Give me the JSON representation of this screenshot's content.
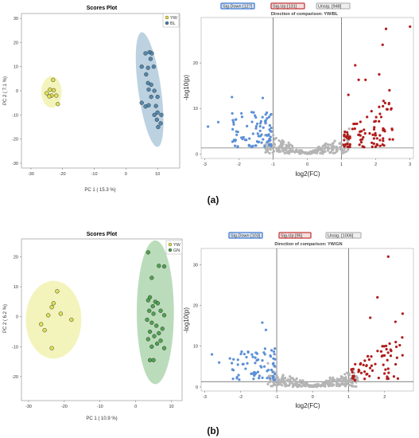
{
  "panels": [
    {
      "label": "(a)"
    },
    {
      "label": "(b)"
    }
  ],
  "chart_data": [
    {
      "type": "scatter",
      "title": "Scores Plot",
      "xlabel": "PC 1 ( 15.3 %)",
      "ylabel": "PC 2 ( 7.1 %)",
      "xlim": [
        -33,
        17
      ],
      "ylim": [
        -32,
        32
      ],
      "xticks": [
        -30,
        -20,
        -10,
        0,
        10
      ],
      "yticks": [
        -30,
        -20,
        -10,
        0,
        10,
        20,
        30
      ],
      "legend_position": "top-right",
      "colors": {
        "YW": "#dede40",
        "BL": "#3f7ea8"
      },
      "series": [
        {
          "name": "YW",
          "points": [
            [
              -23,
              4.5
            ],
            [
              -24,
              0.5
            ],
            [
              -25,
              -1
            ],
            [
              -23.5,
              -2
            ],
            [
              -22,
              -2
            ],
            [
              -21.5,
              -5.5
            ],
            [
              -24.2,
              -2.3
            ],
            [
              -22.8,
              0.2
            ]
          ]
        },
        {
          "name": "BL",
          "points": [
            [
              7.5,
              16
            ],
            [
              6.2,
              15.5
            ],
            [
              8.2,
              15.5
            ],
            [
              7.8,
              13.2
            ],
            [
              5,
              10
            ],
            [
              8.8,
              10
            ],
            [
              7,
              9.5
            ],
            [
              6.4,
              6.8
            ],
            [
              7,
              3.2
            ],
            [
              8,
              2.5
            ],
            [
              7.2,
              0.5
            ],
            [
              9,
              0
            ],
            [
              10,
              -2.5
            ],
            [
              8,
              -2.5
            ],
            [
              7.2,
              -6
            ],
            [
              5,
              -5
            ],
            [
              6.2,
              -6.5
            ],
            [
              10,
              -9
            ],
            [
              9,
              -10
            ],
            [
              11.2,
              -10
            ],
            [
              9.8,
              -12
            ],
            [
              11,
              -13.5
            ],
            [
              10.2,
              -15
            ],
            [
              9.5,
              -6.3
            ]
          ]
        }
      ],
      "ellipses": [
        {
          "group": "YW",
          "cx": -23.5,
          "cy": -0.5,
          "rx": 3.2,
          "ry": 6.5,
          "angle": 0
        },
        {
          "group": "BL",
          "cx": 7.5,
          "cy": 0.5,
          "rx": 3.6,
          "ry": 24,
          "angle": -8
        }
      ]
    },
    {
      "type": "scatter",
      "subtype": "volcano",
      "title": "Direction of comparison: YW/BL",
      "legend": [
        "Sig.Down [127]",
        "Sig.Up [131]",
        "Unsig. [948]"
      ],
      "xlabel": "log2(FC)",
      "ylabel": "-log10(p)",
      "xlim": [
        -3.1,
        3.1
      ],
      "ylim": [
        -1,
        30
      ],
      "xticks": [
        -3,
        -2,
        -1,
        0,
        1,
        2,
        3
      ],
      "yticks": [
        0,
        10,
        20
      ],
      "vlines": [
        -1,
        1
      ],
      "hline": 1.3,
      "colors": {
        "down": "#5b8fd6",
        "up": "#b01c1c",
        "unsig": "#b5b5b5"
      },
      "counts": {
        "down": 127,
        "up": 131,
        "unsig": 948
      },
      "outliers_up": [
        [
          2.3,
          27.5
        ],
        [
          3,
          28
        ],
        [
          2.2,
          24
        ],
        [
          1.4,
          19.5
        ],
        [
          2.1,
          17.5
        ],
        [
          1.7,
          16.3
        ],
        [
          1.5,
          16.3
        ],
        [
          2.4,
          14
        ],
        [
          1.2,
          13
        ]
      ],
      "outliers_down": [
        [
          -1.3,
          12.3
        ],
        [
          -2.2,
          12.5
        ],
        [
          -2.6,
          7
        ],
        [
          -2.9,
          6
        ]
      ]
    },
    {
      "type": "scatter",
      "title": "Scores Plot",
      "xlabel": "PC 1 ( 10.9 %)",
      "ylabel": "PC 2 ( 6.2 %)",
      "xlim": [
        -32,
        13
      ],
      "ylim": [
        -28,
        26
      ],
      "xticks": [
        -30,
        -20,
        -10,
        0,
        10
      ],
      "yticks": [
        -20,
        -10,
        0,
        10,
        20
      ],
      "legend_position": "top-right",
      "colors": {
        "YW": "#dede40",
        "GN": "#3c9a3c"
      },
      "series": [
        {
          "name": "YW",
          "points": [
            [
              -22,
              8.5
            ],
            [
              -23,
              4.5
            ],
            [
              -23.5,
              3.2
            ],
            [
              -21,
              1
            ],
            [
              -24.5,
              0.5
            ],
            [
              -18,
              -1
            ],
            [
              -26.5,
              -2.5
            ],
            [
              -25.5,
              -4.5
            ],
            [
              -23.5,
              -10.5
            ]
          ]
        },
        {
          "name": "GN",
          "points": [
            [
              3.5,
              21.5
            ],
            [
              6.5,
              17
            ],
            [
              8,
              16.8
            ],
            [
              4.5,
              13
            ],
            [
              4,
              6.5
            ],
            [
              3.5,
              5.5
            ],
            [
              5.5,
              5
            ],
            [
              6.2,
              4.5
            ],
            [
              4.8,
              3.5
            ],
            [
              3.8,
              2
            ],
            [
              7,
              2
            ],
            [
              5,
              1
            ],
            [
              8,
              0.5
            ],
            [
              3.2,
              -1
            ],
            [
              4.5,
              -2
            ],
            [
              5.8,
              -3
            ],
            [
              7.5,
              -4
            ],
            [
              4,
              -5
            ],
            [
              6.5,
              -5.5
            ],
            [
              5.2,
              -6.5
            ],
            [
              3.5,
              -7.5
            ],
            [
              7,
              -8
            ],
            [
              6,
              -9
            ],
            [
              4.5,
              -10
            ],
            [
              8,
              -10.5
            ],
            [
              5,
              -14.5
            ],
            [
              4,
              -14.5
            ]
          ]
        }
      ],
      "ellipses": [
        {
          "group": "YW",
          "cx": -23,
          "cy": -1,
          "rx": 7.8,
          "ry": 13,
          "angle": 0
        },
        {
          "group": "GN",
          "cx": 5.5,
          "cy": 1.5,
          "rx": 5.2,
          "ry": 24,
          "angle": 0
        }
      ]
    },
    {
      "type": "scatter",
      "subtype": "volcano",
      "title": "Direction of comparison: YW/GN",
      "legend": [
        "Sig.Down [103]",
        "Sig.Up [95]",
        "Unsig. [1006]"
      ],
      "xlabel": "log2(FC)",
      "ylabel": "-log10(p)",
      "xlim": [
        -3.1,
        2.8
      ],
      "ylim": [
        -1,
        34
      ],
      "xticks": [
        -3,
        -2,
        -1,
        0,
        1,
        2
      ],
      "yticks": [
        0,
        10,
        20,
        30
      ],
      "vlines": [
        -1,
        1
      ],
      "hline": 1.3,
      "colors": {
        "down": "#5b8fd6",
        "up": "#b01c1c",
        "unsig": "#b5b5b5"
      },
      "counts": {
        "down": 103,
        "up": 95,
        "unsig": 1006
      },
      "outliers_up": [
        [
          2.1,
          32
        ],
        [
          1.8,
          22
        ],
        [
          1.6,
          17
        ],
        [
          2.5,
          18
        ],
        [
          2.3,
          16
        ]
      ],
      "outliers_down": [
        [
          -1.4,
          15.8
        ],
        [
          -1.3,
          14
        ],
        [
          -2.8,
          8
        ],
        [
          -2.3,
          7
        ],
        [
          -2.6,
          6
        ]
      ]
    }
  ]
}
